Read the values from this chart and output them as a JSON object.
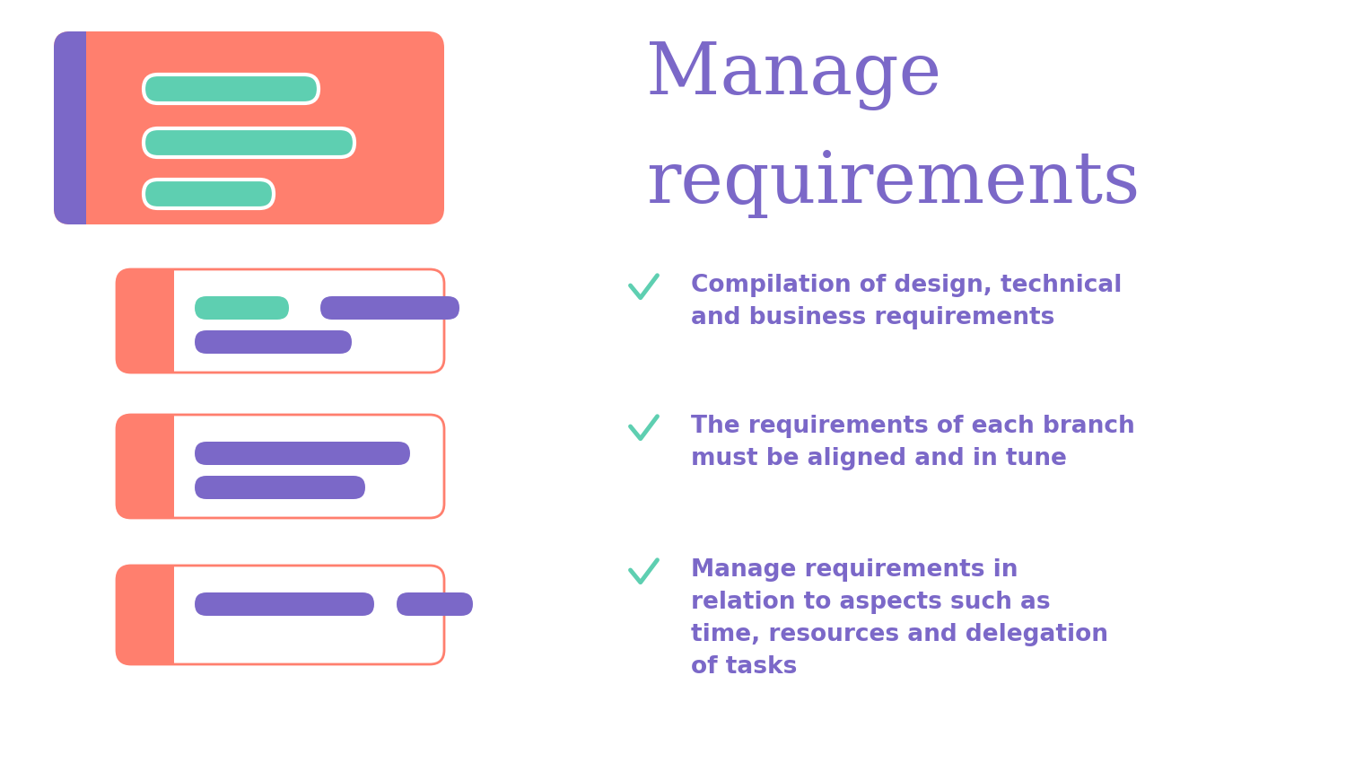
{
  "bg_color": "#ffffff",
  "title_line1": "Manage",
  "title_line2": "requirements",
  "title_color": "#7B68C8",
  "title_fontsize": 58,
  "salmon": "#FF7F6E",
  "purple": "#7B68C8",
  "teal": "#5ECFB1",
  "white": "#ffffff",
  "check_color": "#5ECFB1",
  "check_items": [
    "Compilation of design, technical\nand business requirements",
    "The requirements of each branch\nmust be aligned and in tune",
    "Manage requirements in\nrelation to aspects such as\ntime, resources and delegation\nof tasks"
  ],
  "text_fontsize": 19,
  "text_color": "#7B68C8"
}
